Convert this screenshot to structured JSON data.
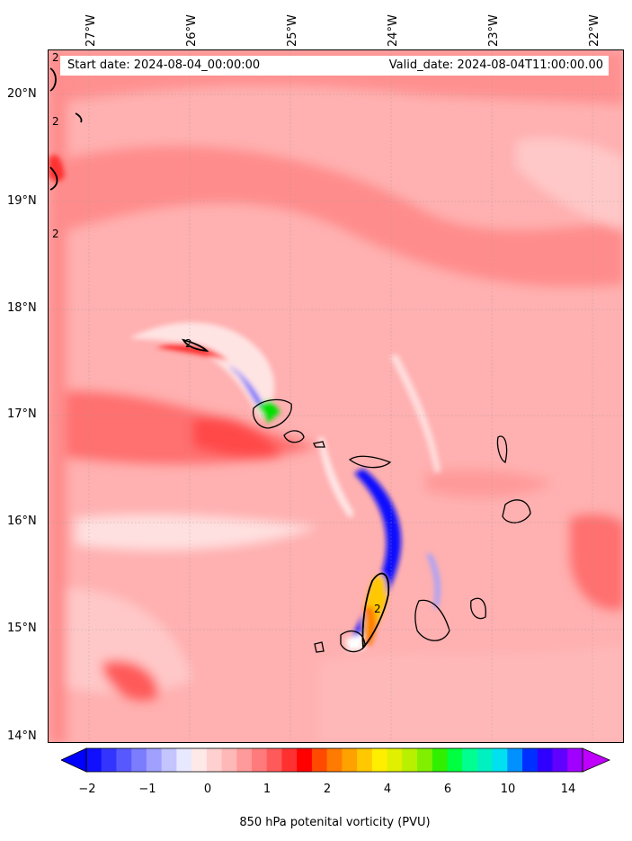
{
  "map": {
    "start_date": "Start date: 2024-08-04_00:00:00",
    "valid_date": "Valid_date: 2024-08-04T11:00:00.00",
    "longitude_labels": [
      "27°W",
      "26°W",
      "25°W",
      "24°W",
      "23°W",
      "22°W"
    ],
    "latitude_labels": [
      "20°N",
      "19°N",
      "18°N",
      "17°N",
      "16°N",
      "15°N",
      "14°N"
    ],
    "contour_labels": [
      "2",
      "2",
      "2",
      "2",
      "2"
    ],
    "background_color": "#ffa6a6"
  },
  "colorbar": {
    "label": "850 hPa potenital vorticity (PVU)",
    "tick_labels": [
      "−2",
      "−1",
      "0",
      "1",
      "2",
      "4",
      "6",
      "10",
      "14"
    ],
    "colors": [
      "#1010ff",
      "#3434ff",
      "#5858ff",
      "#7c7cff",
      "#a0a0ff",
      "#c4c4ff",
      "#e8e8ff",
      "#ffe8e8",
      "#ffd0d0",
      "#ffb8b8",
      "#ff9a9a",
      "#ff7a7a",
      "#ff5a5a",
      "#ff3030",
      "#ff0000",
      "#ff4a00",
      "#ff7a00",
      "#ffa200",
      "#ffc800",
      "#ffee00",
      "#e0f000",
      "#b8f000",
      "#80f000",
      "#30f000",
      "#00ff40",
      "#00ff90",
      "#00f0c0",
      "#00e0f0",
      "#0090ff",
      "#0030ff",
      "#3000ff",
      "#6000ff",
      "#a000ff"
    ],
    "under_color": "#0000ff",
    "over_color": "#c000ff"
  }
}
